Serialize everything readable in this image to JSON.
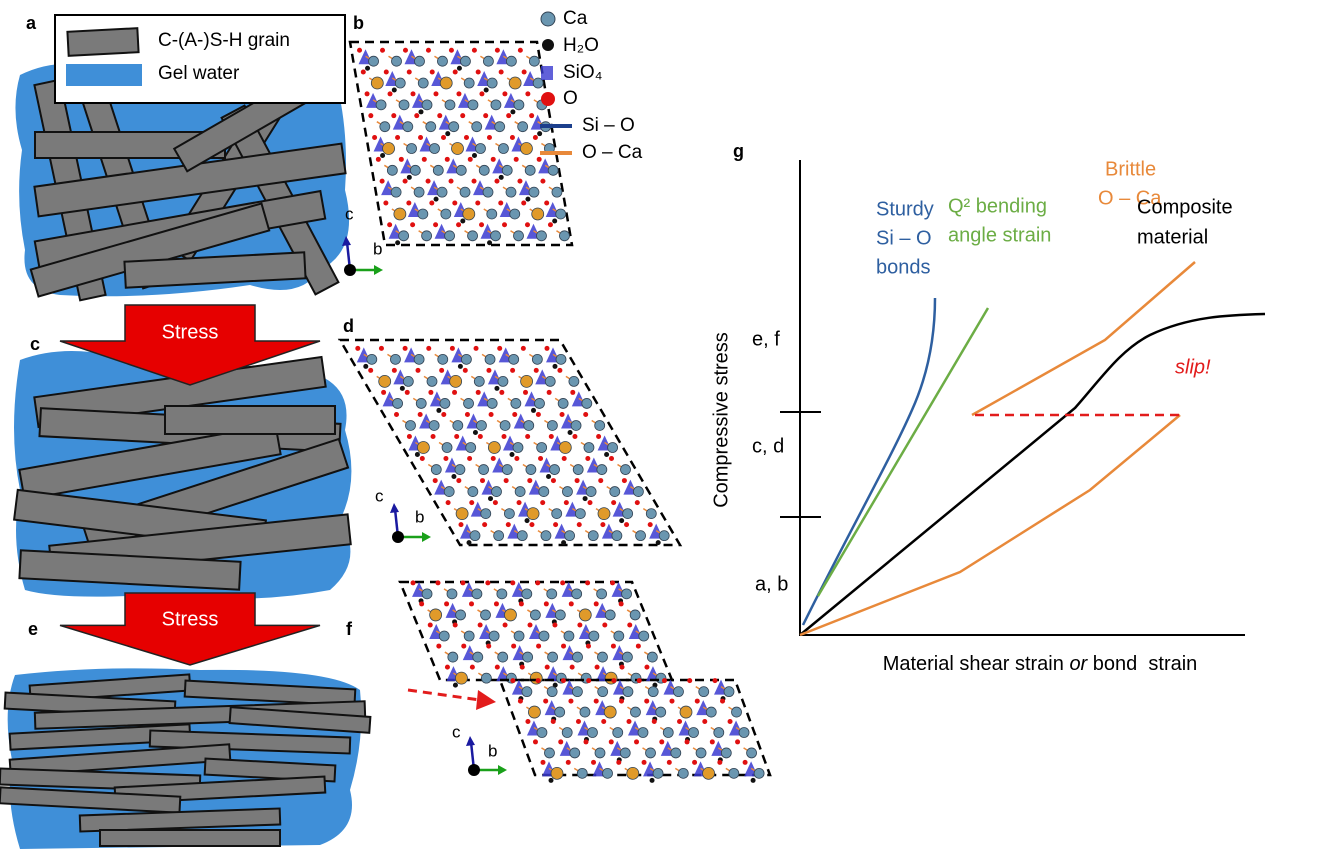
{
  "panels": {
    "a": {
      "label": "a",
      "legend": [
        "C-(A-)S-H grain",
        "Gel water"
      ]
    },
    "b": {
      "label": "b",
      "legend": [
        "Ca",
        "H₂O",
        "SiO₄",
        "O",
        "Si – O",
        "O – Ca"
      ],
      "axes": [
        "c",
        "b"
      ]
    },
    "c": {
      "label": "c",
      "arrow": "Stress"
    },
    "d": {
      "label": "d",
      "axes": [
        "c",
        "b"
      ]
    },
    "e": {
      "label": "e",
      "arrow": "Stress"
    },
    "f": {
      "label": "f",
      "axes": [
        "c",
        "b"
      ]
    },
    "g": {
      "label": "g",
      "curves": {
        "sturdy": [
          "Sturdy",
          "Si – O",
          "bonds"
        ],
        "bending": [
          "Q² bending",
          "angle strain"
        ],
        "brittle": [
          "Brittle",
          "O – Ca"
        ],
        "composite": [
          "Composite",
          "material"
        ]
      },
      "slip": "slip!",
      "levels": [
        "e, f",
        "c, d",
        "a, b"
      ],
      "y_label": "Compressive stress",
      "x_label": [
        "Material shear strain ",
        "or",
        " bond  strain"
      ]
    }
  }
}
